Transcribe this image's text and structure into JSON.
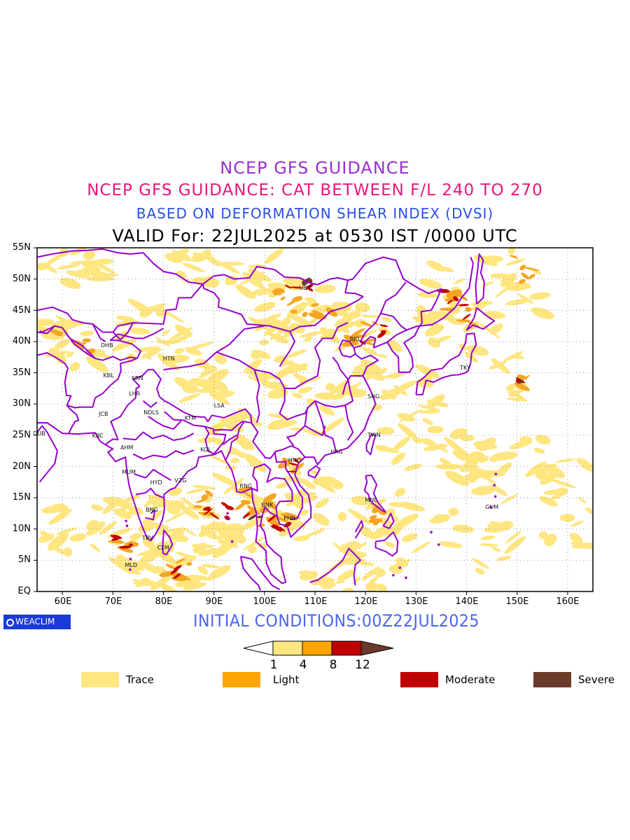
{
  "titles": {
    "line1": "NCEP GFS GUIDANCE",
    "line2": "NCEP GFS GUIDANCE: CAT BETWEEN F/L 240 TO 270",
    "line3": "BASED ON DEFORMATION SHEAR INDEX (DVSI)",
    "line4": "VALID For: 22JUL2025 at 0530 IST /0000 UTC"
  },
  "map": {
    "lon_range": [
      55,
      165
    ],
    "lat_range": [
      0,
      55
    ],
    "lat_labels": [
      "55N",
      "50N",
      "45N",
      "40N",
      "35N",
      "30N",
      "25N",
      "20N",
      "15N",
      "10N",
      "5N",
      "EQ"
    ],
    "lon_labels": [
      "60E",
      "70E",
      "80E",
      "90E",
      "100E",
      "110E",
      "120E",
      "130E",
      "140E",
      "150E",
      "160E"
    ],
    "cities": [
      {
        "code": "UBT",
        "lon": 108,
        "lat": 48.5
      },
      {
        "code": "BJG",
        "lon": 118,
        "lat": 40.3
      },
      {
        "code": "DHB",
        "lon": 68.7,
        "lat": 39.3
      },
      {
        "code": "HTN",
        "lon": 81,
        "lat": 37.2
      },
      {
        "code": "KBL",
        "lon": 69.2,
        "lat": 34.5
      },
      {
        "code": "SRN",
        "lon": 74.8,
        "lat": 34.1
      },
      {
        "code": "LHR",
        "lon": 74.3,
        "lat": 31.6
      },
      {
        "code": "TKY",
        "lon": 139.8,
        "lat": 35.7
      },
      {
        "code": "SHG",
        "lon": 121.5,
        "lat": 31.2
      },
      {
        "code": "LSA",
        "lon": 91.1,
        "lat": 29.7
      },
      {
        "code": "JCB",
        "lon": 68.3,
        "lat": 28.3
      },
      {
        "code": "NDLS",
        "lon": 77.2,
        "lat": 28.6
      },
      {
        "code": "KTM",
        "lon": 85.3,
        "lat": 27.7
      },
      {
        "code": "DUB",
        "lon": 55.3,
        "lat": 25.2
      },
      {
        "code": "KRC",
        "lon": 67,
        "lat": 24.9
      },
      {
        "code": "TWN",
        "lon": 121.5,
        "lat": 25
      },
      {
        "code": "AHM",
        "lon": 72.6,
        "lat": 23
      },
      {
        "code": "KOL",
        "lon": 88.4,
        "lat": 22.6
      },
      {
        "code": "HKG",
        "lon": 114.2,
        "lat": 22.3
      },
      {
        "code": "HNO",
        "lon": 105.8,
        "lat": 21
      },
      {
        "code": "MUM",
        "lon": 72.9,
        "lat": 19.1
      },
      {
        "code": "HYD",
        "lon": 78.5,
        "lat": 17.4
      },
      {
        "code": "VZG",
        "lon": 83.3,
        "lat": 17.7
      },
      {
        "code": "RNG",
        "lon": 96.2,
        "lat": 16.8
      },
      {
        "code": "BNK",
        "lon": 100.5,
        "lat": 13.8
      },
      {
        "code": "MNL",
        "lon": 121,
        "lat": 14.6
      },
      {
        "code": "GUM",
        "lon": 144.8,
        "lat": 13.5
      },
      {
        "code": "BNG",
        "lon": 77.6,
        "lat": 13
      },
      {
        "code": "PHN",
        "lon": 104.9,
        "lat": 11.6
      },
      {
        "code": "TRV",
        "lon": 76.9,
        "lat": 8.5
      },
      {
        "code": "CLM",
        "lon": 79.9,
        "lat": 6.9
      },
      {
        "code": "MLD",
        "lon": 73.5,
        "lat": 4.2
      }
    ]
  },
  "logo": "WEACLIM",
  "initial_conditions": "INITIAL CONDITIONS:00Z22JUL2025",
  "colorbar": {
    "ticks": [
      "1",
      "4",
      "8",
      "12"
    ],
    "colors": [
      "#ffe680",
      "#ffa500",
      "#c00000",
      "#6b3a2a"
    ]
  },
  "legend": [
    {
      "label": "Trace",
      "color": "#ffe680"
    },
    {
      "label": "Light",
      "color": "#ffa500"
    },
    {
      "label": "Moderate",
      "color": "#c00000"
    },
    {
      "label": "Severe",
      "color": "#6b3a2a"
    }
  ],
  "colors": {
    "coastline": "#9900cc",
    "grid": "#999999",
    "trace": "#ffe680",
    "light": "#f5a623",
    "moderate": "#c00000",
    "severe": "#6b3a2a"
  }
}
